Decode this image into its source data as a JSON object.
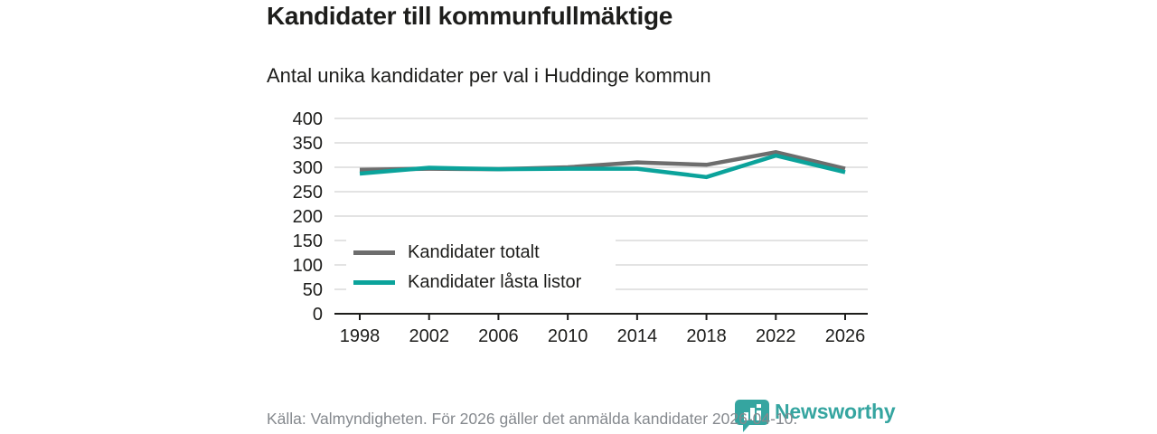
{
  "header": {
    "title": "Kandidater till kommunfullmäktige",
    "subtitle": "Antal unika kandidater per val i Huddinge kommun"
  },
  "chart_data": {
    "type": "line",
    "categories": [
      "1998",
      "2002",
      "2006",
      "2010",
      "2014",
      "2018",
      "2022",
      "2026"
    ],
    "series": [
      {
        "name": "Kandidater totalt",
        "color": "#6d6d6d",
        "values": [
          295,
          297,
          296,
          300,
          310,
          305,
          331,
          297
        ]
      },
      {
        "name": "Kandidater låsta listor",
        "color": "#0ba39b",
        "values": [
          287,
          299,
          296,
          297,
          297,
          280,
          324,
          290
        ]
      }
    ],
    "title": "Kandidater till kommunfullmäktige",
    "subtitle": "Antal unika kandidater per val i Huddinge kommun",
    "xlabel": "",
    "ylabel": "",
    "ylim": [
      0,
      400
    ],
    "ytick_step": 50,
    "yticks": [
      0,
      50,
      100,
      150,
      200,
      250,
      300,
      350,
      400
    ],
    "grid": "horizontal",
    "legend_position": "inside bottom-left"
  },
  "footer": {
    "source": "Källa: Valmyndigheten. För 2026 gäller det anmälda kandidater 2026-04-10.",
    "brand": "Newsworthy"
  },
  "colors": {
    "text": "#1d1d1b",
    "muted_text": "#85898e",
    "grid": "#e3e3e3",
    "axis": "#1d1d1b",
    "series_total": "#6d6d6d",
    "series_locked": "#0ba39b",
    "brand_teal": "#35a5a0"
  }
}
